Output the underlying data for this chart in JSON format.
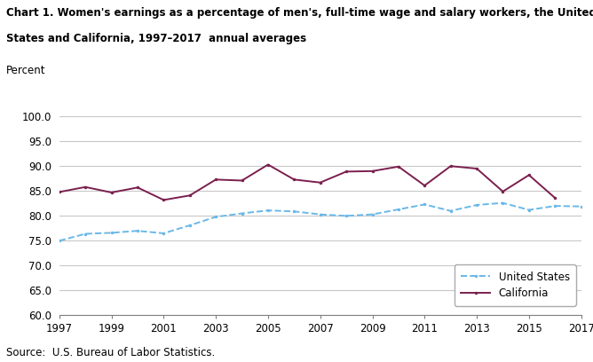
{
  "title_line1": "Chart 1. Women's earnings as a percentage of men's, full-time wage and salary workers, the United",
  "title_line2": "States and California, 1997–2017  annual averages",
  "ylabel_text": "Percent",
  "source": "Source:  U.S. Bureau of Labor Statistics.",
  "years": [
    1997,
    1998,
    1999,
    2000,
    2001,
    2002,
    2003,
    2004,
    2005,
    2006,
    2007,
    2008,
    2009,
    2010,
    2011,
    2012,
    2013,
    2014,
    2015,
    2016,
    2017
  ],
  "us_values": [
    74.9,
    76.3,
    76.5,
    76.9,
    76.4,
    78.0,
    79.7,
    80.4,
    81.0,
    80.8,
    80.2,
    79.9,
    80.2,
    81.2,
    82.2,
    80.9,
    82.1,
    82.5,
    81.1,
    81.9,
    81.8
  ],
  "ca_values": [
    84.7,
    85.7,
    84.6,
    85.6,
    83.1,
    84.0,
    87.2,
    87.0,
    90.2,
    87.2,
    86.6,
    88.8,
    88.9,
    89.8,
    86.0,
    89.9,
    89.4,
    84.8,
    88.1,
    83.5
  ],
  "ca_years": [
    1997,
    1998,
    1999,
    2000,
    2001,
    2002,
    2003,
    2004,
    2005,
    2006,
    2007,
    2008,
    2009,
    2010,
    2011,
    2012,
    2013,
    2014,
    2015,
    2016
  ],
  "us_color": "#6ab8e8",
  "ca_color": "#7b1f4e",
  "ylim": [
    60.0,
    100.0
  ],
  "ytick_labels": [
    "60.0",
    "65.0",
    "70.0",
    "75.0",
    "80.0",
    "85.0",
    "90.0",
    "95.0",
    "100.0"
  ],
  "ytick_vals": [
    60.0,
    65.0,
    70.0,
    75.0,
    80.0,
    85.0,
    90.0,
    95.0,
    100.0
  ],
  "xticks": [
    1997,
    1999,
    2001,
    2003,
    2005,
    2007,
    2009,
    2011,
    2013,
    2015,
    2017
  ],
  "legend_us": "United States",
  "legend_ca": "California",
  "background_color": "#ffffff",
  "grid_color": "#c8c8c8",
  "spine_color": "#808080"
}
